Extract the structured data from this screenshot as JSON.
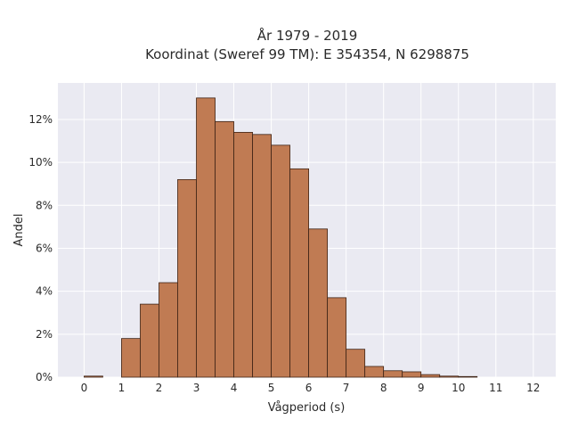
{
  "chart_data": {
    "type": "bar",
    "title_line1": "År 1979 - 2019",
    "title_line2": "Koordinat (Sweref 99 TM): E 354354, N 6298875",
    "xlabel": "Vågperiod (s)",
    "ylabel": "Andel",
    "xlim": [
      -0.7,
      12.6
    ],
    "ylim": [
      0,
      13.7
    ],
    "x_ticks": [
      0,
      1,
      2,
      3,
      4,
      5,
      6,
      7,
      8,
      9,
      10,
      11,
      12
    ],
    "y_ticks": [
      0,
      2,
      4,
      6,
      8,
      10,
      12
    ],
    "y_tick_labels": [
      "0%",
      "2%",
      "4%",
      "6%",
      "8%",
      "10%",
      "12%"
    ],
    "bin_width": 0.5,
    "bins": [
      {
        "x0": 0.0,
        "value": 0.05
      },
      {
        "x0": 1.0,
        "value": 1.8
      },
      {
        "x0": 1.5,
        "value": 3.4
      },
      {
        "x0": 2.0,
        "value": 4.4
      },
      {
        "x0": 2.5,
        "value": 9.2
      },
      {
        "x0": 3.0,
        "value": 13.0
      },
      {
        "x0": 3.5,
        "value": 11.9
      },
      {
        "x0": 4.0,
        "value": 11.4
      },
      {
        "x0": 4.5,
        "value": 11.3
      },
      {
        "x0": 5.0,
        "value": 10.8
      },
      {
        "x0": 5.5,
        "value": 9.7
      },
      {
        "x0": 6.0,
        "value": 6.9
      },
      {
        "x0": 6.5,
        "value": 3.7
      },
      {
        "x0": 7.0,
        "value": 1.3
      },
      {
        "x0": 7.5,
        "value": 0.5
      },
      {
        "x0": 8.0,
        "value": 0.3
      },
      {
        "x0": 8.5,
        "value": 0.25
      },
      {
        "x0": 9.0,
        "value": 0.12
      },
      {
        "x0": 9.5,
        "value": 0.05
      },
      {
        "x0": 10.0,
        "value": 0.03
      }
    ],
    "bar_color": "#c07b53",
    "bar_edge_color": "#3f2416",
    "plot_background": "#eaeaf2",
    "grid": true,
    "grid_color": "#ffffff"
  }
}
